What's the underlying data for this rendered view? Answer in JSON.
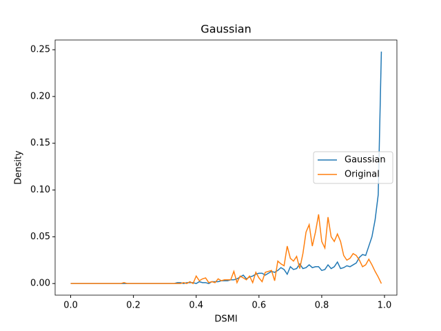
{
  "chart_data": {
    "type": "line",
    "title": "Gaussian",
    "xlabel": "DSMI",
    "ylabel": "Density",
    "x": [
      0,
      0.01,
      0.02,
      0.03,
      0.04,
      0.05,
      0.06,
      0.07,
      0.08,
      0.09,
      0.1,
      0.11,
      0.12,
      0.13,
      0.14,
      0.15,
      0.16,
      0.17,
      0.18,
      0.19,
      0.2,
      0.21,
      0.22,
      0.23,
      0.24,
      0.25,
      0.26,
      0.27,
      0.28,
      0.29,
      0.3,
      0.31,
      0.32,
      0.33,
      0.34,
      0.35,
      0.36,
      0.37,
      0.38,
      0.39,
      0.4,
      0.41,
      0.42,
      0.43,
      0.44,
      0.45,
      0.46,
      0.47,
      0.48,
      0.49,
      0.5,
      0.51,
      0.52,
      0.53,
      0.54,
      0.55,
      0.56,
      0.57,
      0.58,
      0.59,
      0.6,
      0.61,
      0.62,
      0.63,
      0.64,
      0.65,
      0.66,
      0.67,
      0.68,
      0.69,
      0.7,
      0.71,
      0.72,
      0.73,
      0.74,
      0.75,
      0.76,
      0.77,
      0.78,
      0.79,
      0.8,
      0.81,
      0.82,
      0.83,
      0.84,
      0.85,
      0.86,
      0.87,
      0.88,
      0.89,
      0.9,
      0.91,
      0.92,
      0.93,
      0.94,
      0.95,
      0.96,
      0.97,
      0.98,
      0.99
    ],
    "series": [
      {
        "name": "Gaussian",
        "color": "#1f77b4",
        "values": [
          0,
          0,
          0,
          0,
          0,
          0,
          0,
          0,
          0,
          0,
          0,
          0,
          0,
          0,
          0,
          0,
          0,
          0,
          0,
          0,
          0,
          0,
          0,
          0,
          0,
          0,
          0,
          0,
          0,
          0,
          0,
          0,
          0,
          0,
          0.001,
          0.001,
          0,
          0.001,
          0.001,
          0.001,
          0,
          0.002,
          0.001,
          0.001,
          0,
          0.002,
          0.002,
          0.002,
          0.003,
          0.003,
          0.003,
          0.004,
          0.004,
          0.005,
          0.007,
          0.009,
          0.005,
          0.007,
          0.008,
          0.01,
          0.011,
          0.011,
          0.009,
          0.011,
          0.013,
          0.012,
          0.014,
          0.017,
          0.015,
          0.01,
          0.018,
          0.015,
          0.016,
          0.021,
          0.016,
          0.017,
          0.02,
          0.017,
          0.018,
          0.018,
          0.014,
          0.015,
          0.02,
          0.016,
          0.018,
          0.023,
          0.016,
          0.017,
          0.019,
          0.018,
          0.02,
          0.022,
          0.028,
          0.031,
          0.03,
          0.04,
          0.05,
          0.068,
          0.095,
          0.248
        ]
      },
      {
        "name": "Original",
        "color": "#ff7f0e",
        "values": [
          0,
          0,
          0,
          0,
          0,
          0,
          0,
          0,
          0,
          0,
          0,
          0,
          0,
          0,
          0,
          0,
          0,
          0.001,
          0,
          0,
          0,
          0,
          0,
          0,
          0,
          0,
          0,
          0,
          0,
          0,
          0,
          0,
          0,
          0,
          0,
          0,
          0.001,
          0,
          0.002,
          0,
          0.008,
          0.003,
          0.005,
          0.006,
          0.001,
          0.002,
          0.001,
          0.005,
          0.003,
          0.004,
          0.004,
          0.004,
          0.013,
          0.001,
          0.008,
          0.006,
          0.004,
          0.008,
          0.001,
          0.012,
          0.006,
          0.002,
          0.012,
          0.013,
          0.014,
          0.003,
          0.024,
          0.021,
          0.019,
          0.04,
          0.027,
          0.024,
          0.029,
          0.016,
          0.032,
          0.055,
          0.063,
          0.04,
          0.055,
          0.074,
          0.045,
          0.038,
          0.071,
          0.05,
          0.045,
          0.053,
          0.045,
          0.03,
          0.025,
          0.027,
          0.032,
          0.03,
          0.025,
          0.018,
          0.02,
          0.026,
          0.02,
          0.013,
          0.007,
          0
        ]
      }
    ],
    "xlim": [
      -0.0495,
      1.0395
    ],
    "ylim": [
      -0.0124,
      0.2604
    ],
    "xticks": [
      {
        "value": 0,
        "label": "0.0"
      },
      0.2,
      0.4,
      0.6,
      0.8,
      {
        "value": 1,
        "label": "1.0"
      }
    ],
    "yticks": [
      {
        "value": 0,
        "label": "0.00"
      },
      {
        "value": 0.05,
        "label": "0.05"
      },
      {
        "value": 0.1,
        "label": "0.10"
      },
      {
        "value": 0.15,
        "label": "0.15"
      },
      {
        "value": 0.2,
        "label": "0.20"
      },
      {
        "value": 0.25,
        "label": "0.25"
      }
    ],
    "legend": "center right"
  }
}
